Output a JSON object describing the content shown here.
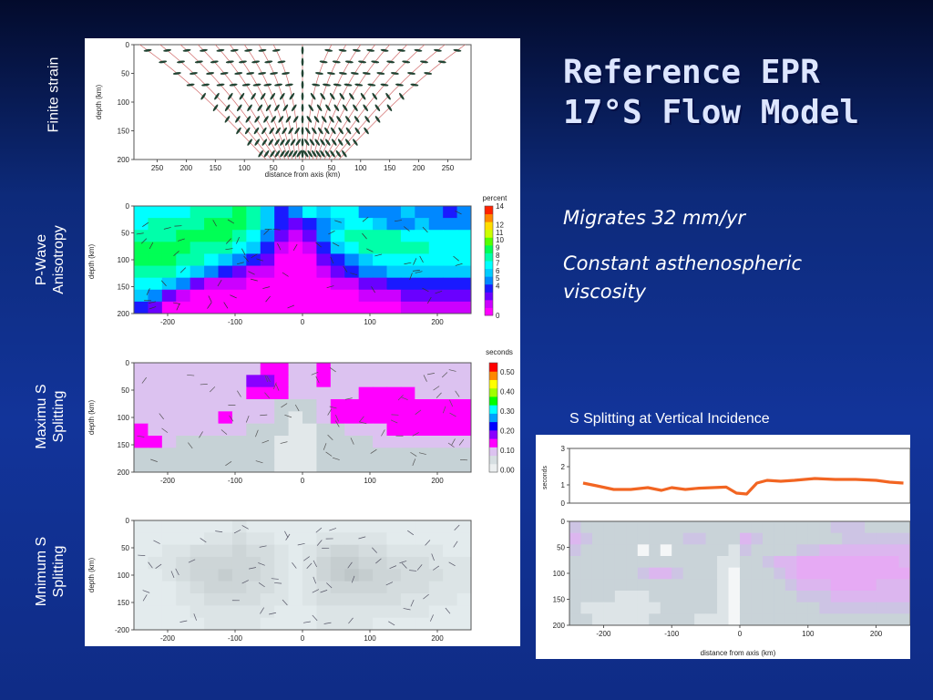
{
  "slide": {
    "title_line1": "Reference EPR",
    "title_line2": "17°S Flow Model",
    "bullet1": "Migrates 32 mm/yr",
    "bullet2_line1": "Constant asthenospheric",
    "bullet2_line2": "viscosity",
    "side_labels": {
      "finite_strain": "Finite strain",
      "pwave_line1": "P-Wave",
      "pwave_line2": "Anisotropy",
      "maxs_line1": "Maximu S",
      "maxs_line2": "Splitting",
      "mins_line1": "Mnimum S",
      "mins_line2": "Splitting"
    },
    "s_split_title": "S Splitting at Vertical Incidence"
  },
  "chart_data": [
    {
      "type": "other",
      "panel": "finite-strain",
      "xlabel": "distance from axis (km)",
      "ylabel": "depth (km)",
      "xticks": [
        "250",
        "200",
        "150",
        "100",
        "50",
        "0",
        "50",
        "100",
        "150",
        "200",
        "250"
      ],
      "yticks": [
        "0",
        "50",
        "100",
        "150",
        "200"
      ],
      "xlim": [
        -290,
        290
      ],
      "ylim": [
        0,
        200
      ]
    },
    {
      "type": "heatmap",
      "panel": "p-wave-anisotropy",
      "ylabel": "depth (km)",
      "xticks": [
        "-200",
        "-100",
        "0",
        "100",
        "200"
      ],
      "yticks": [
        "0",
        "50",
        "100",
        "150",
        "200"
      ],
      "xlim": [
        -250,
        250
      ],
      "ylim": [
        0,
        200
      ],
      "colorbar_label": "percent",
      "colorbar_ticks": [
        "14",
        "12",
        "11",
        "10",
        "9",
        "8",
        "7",
        "6",
        "5",
        "4",
        "0"
      ],
      "grid_rows": [
        [
          7,
          7,
          7,
          7,
          8,
          8,
          8,
          9,
          8,
          6,
          4,
          5,
          7,
          6,
          7,
          7,
          5,
          5,
          5,
          6,
          5,
          5,
          4,
          5
        ],
        [
          7,
          8,
          8,
          8,
          8,
          9,
          9,
          9,
          8,
          6,
          4,
          3,
          4,
          5,
          6,
          7,
          7,
          6,
          5,
          5,
          6,
          5,
          5,
          5
        ],
        [
          8,
          8,
          8,
          9,
          9,
          9,
          9,
          8,
          7,
          5,
          3,
          2,
          3,
          5,
          7,
          8,
          8,
          8,
          8,
          7,
          7,
          7,
          7,
          7
        ],
        [
          9,
          9,
          9,
          9,
          8,
          8,
          8,
          7,
          6,
          4,
          2,
          1,
          2,
          4,
          6,
          7,
          8,
          8,
          8,
          8,
          8,
          7,
          7,
          7
        ],
        [
          9,
          9,
          9,
          8,
          8,
          7,
          6,
          5,
          4,
          3,
          1,
          1,
          1,
          3,
          4,
          5,
          6,
          7,
          7,
          7,
          7,
          7,
          7,
          7
        ],
        [
          8,
          8,
          8,
          7,
          6,
          5,
          4,
          3,
          2,
          2,
          1,
          1,
          1,
          2,
          3,
          4,
          5,
          5,
          6,
          6,
          6,
          6,
          6,
          6
        ],
        [
          7,
          7,
          6,
          5,
          3,
          2,
          2,
          2,
          1,
          1,
          1,
          1,
          1,
          1,
          2,
          2,
          3,
          3,
          4,
          4,
          4,
          4,
          4,
          4
        ],
        [
          6,
          5,
          3,
          2,
          1,
          1,
          1,
          1,
          1,
          1,
          1,
          1,
          1,
          1,
          1,
          1,
          2,
          2,
          2,
          3,
          3,
          3,
          3,
          3
        ],
        [
          4,
          3,
          1,
          1,
          1,
          1,
          1,
          1,
          1,
          1,
          1,
          1,
          1,
          1,
          1,
          1,
          1,
          1,
          1,
          2,
          2,
          2,
          2,
          2
        ]
      ]
    },
    {
      "type": "heatmap",
      "panel": "maximum-s-splitting",
      "ylabel": "depth (km)",
      "xticks": [
        "-200",
        "-100",
        "0",
        "100",
        "200"
      ],
      "yticks": [
        "0",
        "50",
        "100",
        "150",
        "200"
      ],
      "xlim": [
        -250,
        250
      ],
      "ylim": [
        0,
        200
      ],
      "colorbar_label": "seconds",
      "colorbar_ticks": [
        "0.50",
        "0.40",
        "0.30",
        "0.20",
        "0.10",
        "0.00"
      ],
      "grid_rows": [
        [
          0.14,
          0.14,
          0.14,
          0.14,
          0.14,
          0.14,
          0.14,
          0.14,
          0.14,
          0.2,
          0.2,
          0.14,
          0.14,
          0.2,
          0.14,
          0.14,
          0.14,
          0.14,
          0.14,
          0.14,
          0.14,
          0.14,
          0.14,
          0.14
        ],
        [
          0.14,
          0.14,
          0.14,
          0.14,
          0.14,
          0.14,
          0.14,
          0.14,
          0.25,
          0.22,
          0.2,
          0.14,
          0.14,
          0.2,
          0.14,
          0.14,
          0.14,
          0.14,
          0.14,
          0.14,
          0.14,
          0.14,
          0.14,
          0.14
        ],
        [
          0.14,
          0.14,
          0.14,
          0.14,
          0.14,
          0.14,
          0.14,
          0.14,
          0.2,
          0.2,
          0.2,
          0.14,
          0.14,
          0.14,
          0.14,
          0.14,
          0.2,
          0.2,
          0.2,
          0.2,
          0.14,
          0.14,
          0.14,
          0.14
        ],
        [
          0.14,
          0.14,
          0.14,
          0.14,
          0.14,
          0.14,
          0.14,
          0.14,
          0.14,
          0.14,
          0.12,
          0.12,
          0.12,
          0.14,
          0.2,
          0.2,
          0.2,
          0.2,
          0.2,
          0.2,
          0.2,
          0.2,
          0.2,
          0.2
        ],
        [
          0.14,
          0.14,
          0.14,
          0.14,
          0.14,
          0.14,
          0.2,
          0.14,
          0.14,
          0.14,
          0.12,
          0.08,
          0.1,
          0.14,
          0.2,
          0.2,
          0.2,
          0.2,
          0.2,
          0.2,
          0.2,
          0.2,
          0.2,
          0.2
        ],
        [
          0.2,
          0.14,
          0.14,
          0.14,
          0.14,
          0.14,
          0.14,
          0.14,
          0.12,
          0.1,
          0.1,
          0.06,
          0.08,
          0.12,
          0.12,
          0.14,
          0.14,
          0.14,
          0.2,
          0.2,
          0.2,
          0.2,
          0.2,
          0.2
        ],
        [
          0.2,
          0.2,
          0.14,
          0.12,
          0.12,
          0.12,
          0.1,
          0.1,
          0.1,
          0.1,
          0.08,
          0.06,
          0.08,
          0.1,
          0.1,
          0.12,
          0.12,
          0.14,
          0.14,
          0.14,
          0.14,
          0.14,
          0.14,
          0.14
        ],
        [
          0.12,
          0.12,
          0.12,
          0.12,
          0.12,
          0.1,
          0.1,
          0.1,
          0.1,
          0.1,
          0.08,
          0.06,
          0.08,
          0.1,
          0.1,
          0.1,
          0.1,
          0.12,
          0.12,
          0.12,
          0.12,
          0.12,
          0.12,
          0.12
        ],
        [
          0.12,
          0.12,
          0.12,
          0.1,
          0.1,
          0.1,
          0.1,
          0.1,
          0.1,
          0.1,
          0.08,
          0.06,
          0.08,
          0.1,
          0.1,
          0.1,
          0.1,
          0.1,
          0.1,
          0.1,
          0.1,
          0.1,
          0.1,
          0.1
        ]
      ]
    },
    {
      "type": "heatmap",
      "panel": "minimum-s-splitting",
      "ylabel": "depth (km)",
      "xticks": [
        "-200",
        "-100",
        "0",
        "100",
        "200"
      ],
      "yticks": [
        "0",
        "50",
        "100",
        "150",
        "200"
      ],
      "xlim": [
        -250,
        250
      ],
      "ylim": [
        0,
        200
      ],
      "grid_rows": [
        [
          0.02,
          0.02,
          0.02,
          0.02,
          0.02,
          0.02,
          0.02,
          0.03,
          0.02,
          0.02,
          0.02,
          0.02,
          0.02,
          0.02,
          0.02,
          0.02,
          0.02,
          0.02,
          0.02,
          0.02,
          0.02,
          0.02,
          0.02,
          0.02
        ],
        [
          0.02,
          0.02,
          0.02,
          0.02,
          0.02,
          0.03,
          0.03,
          0.04,
          0.03,
          0.03,
          0.02,
          0.02,
          0.02,
          0.03,
          0.03,
          0.03,
          0.03,
          0.03,
          0.02,
          0.02,
          0.02,
          0.02,
          0.02,
          0.02
        ],
        [
          0.02,
          0.02,
          0.03,
          0.03,
          0.04,
          0.04,
          0.04,
          0.05,
          0.04,
          0.04,
          0.03,
          0.02,
          0.03,
          0.04,
          0.05,
          0.05,
          0.04,
          0.04,
          0.03,
          0.03,
          0.03,
          0.03,
          0.02,
          0.02
        ],
        [
          0.02,
          0.03,
          0.03,
          0.04,
          0.05,
          0.05,
          0.05,
          0.05,
          0.05,
          0.04,
          0.03,
          0.02,
          0.03,
          0.05,
          0.06,
          0.06,
          0.05,
          0.05,
          0.04,
          0.04,
          0.04,
          0.03,
          0.03,
          0.03
        ],
        [
          0.02,
          0.02,
          0.03,
          0.04,
          0.05,
          0.05,
          0.06,
          0.05,
          0.05,
          0.04,
          0.03,
          0.02,
          0.03,
          0.05,
          0.06,
          0.07,
          0.06,
          0.05,
          0.05,
          0.04,
          0.04,
          0.04,
          0.03,
          0.03
        ],
        [
          0.02,
          0.02,
          0.02,
          0.03,
          0.04,
          0.05,
          0.05,
          0.05,
          0.04,
          0.04,
          0.03,
          0.02,
          0.03,
          0.04,
          0.05,
          0.05,
          0.05,
          0.05,
          0.04,
          0.04,
          0.04,
          0.03,
          0.03,
          0.03
        ],
        [
          0.02,
          0.02,
          0.02,
          0.03,
          0.03,
          0.04,
          0.04,
          0.04,
          0.04,
          0.03,
          0.03,
          0.02,
          0.03,
          0.04,
          0.04,
          0.04,
          0.04,
          0.04,
          0.04,
          0.03,
          0.03,
          0.03,
          0.03,
          0.02
        ],
        [
          0.02,
          0.02,
          0.02,
          0.02,
          0.03,
          0.03,
          0.03,
          0.03,
          0.03,
          0.03,
          0.02,
          0.02,
          0.02,
          0.03,
          0.03,
          0.03,
          0.03,
          0.03,
          0.03,
          0.03,
          0.03,
          0.02,
          0.02,
          0.02
        ],
        [
          0.02,
          0.02,
          0.02,
          0.02,
          0.02,
          0.03,
          0.03,
          0.03,
          0.03,
          0.02,
          0.02,
          0.02,
          0.02,
          0.03,
          0.03,
          0.03,
          0.03,
          0.02,
          0.02,
          0.02,
          0.02,
          0.02,
          0.02,
          0.02
        ]
      ]
    },
    {
      "type": "line",
      "panel": "s-splitting-vertical-incidence",
      "ylabel": "seconds",
      "xlim": [
        -250,
        250
      ],
      "ylim": [
        0,
        3
      ],
      "yticks": [
        "0",
        "1",
        "2",
        "3"
      ],
      "series": [
        {
          "color": "#f26522",
          "x": [
            -230,
            -210,
            -185,
            -160,
            -135,
            -115,
            -100,
            -80,
            -60,
            -40,
            -20,
            -5,
            10,
            25,
            40,
            60,
            80,
            110,
            140,
            170,
            200,
            220,
            240
          ],
          "values": [
            1.1,
            0.95,
            0.75,
            0.75,
            0.85,
            0.7,
            0.85,
            0.75,
            0.82,
            0.85,
            0.88,
            0.55,
            0.5,
            1.1,
            1.25,
            1.2,
            1.25,
            1.35,
            1.3,
            1.3,
            1.25,
            1.15,
            1.1
          ]
        }
      ]
    },
    {
      "type": "heatmap",
      "panel": "s-splitting-depth-section",
      "xlabel": "distance from axis (km)",
      "xticks": [
        "-200",
        "-100",
        "0",
        "100",
        "200"
      ],
      "yticks": [
        "0",
        "50",
        "100",
        "150",
        "200"
      ],
      "xlim": [
        -250,
        250
      ],
      "ylim": [
        0,
        200
      ],
      "grid_rows": [
        [
          0.14,
          0.12,
          0.12,
          0.12,
          0.12,
          0.12,
          0.12,
          0.12,
          0.12,
          0.12,
          0.12,
          0.12,
          0.1,
          0.12,
          0.12,
          0.12,
          0.12,
          0.1,
          0.1,
          0.12,
          0.12,
          0.12,
          0.12,
          0.14,
          0.14,
          0.14,
          0.12,
          0.12,
          0.12,
          0.12
        ],
        [
          0.16,
          0.14,
          0.12,
          0.12,
          0.12,
          0.12,
          0.12,
          0.1,
          0.12,
          0.12,
          0.14,
          0.14,
          0.12,
          0.12,
          0.12,
          0.16,
          0.14,
          0.12,
          0.12,
          0.12,
          0.12,
          0.12,
          0.12,
          0.12,
          0.14,
          0.14,
          0.14,
          0.14,
          0.14,
          0.14
        ],
        [
          0.14,
          0.12,
          0.12,
          0.12,
          0.12,
          0.12,
          0.04,
          0.12,
          0.04,
          0.12,
          0.12,
          0.12,
          0.12,
          0.12,
          0.06,
          0.14,
          0.12,
          0.12,
          0.12,
          0.12,
          0.14,
          0.14,
          0.16,
          0.16,
          0.16,
          0.16,
          0.16,
          0.16,
          0.16,
          0.16
        ],
        [
          0.12,
          0.12,
          0.12,
          0.12,
          0.12,
          0.12,
          0.12,
          0.12,
          0.12,
          0.12,
          0.12,
          0.12,
          0.12,
          0.06,
          0.06,
          0.12,
          0.12,
          0.14,
          0.16,
          0.16,
          0.18,
          0.18,
          0.18,
          0.18,
          0.18,
          0.18,
          0.18,
          0.18,
          0.18,
          0.16
        ],
        [
          0.12,
          0.12,
          0.12,
          0.12,
          0.12,
          0.12,
          0.14,
          0.16,
          0.16,
          0.14,
          0.12,
          0.12,
          0.12,
          0.06,
          0.04,
          0.12,
          0.12,
          0.12,
          0.14,
          0.16,
          0.18,
          0.18,
          0.18,
          0.18,
          0.18,
          0.18,
          0.18,
          0.18,
          0.18,
          0.18
        ],
        [
          0.12,
          0.12,
          0.12,
          0.12,
          0.12,
          0.12,
          0.12,
          0.12,
          0.12,
          0.12,
          0.12,
          0.12,
          0.12,
          0.06,
          0.04,
          0.1,
          0.12,
          0.12,
          0.12,
          0.14,
          0.16,
          0.16,
          0.16,
          0.18,
          0.18,
          0.18,
          0.18,
          0.16,
          0.16,
          0.16
        ],
        [
          0.1,
          0.1,
          0.1,
          0.1,
          0.08,
          0.08,
          0.08,
          0.1,
          0.1,
          0.1,
          0.1,
          0.1,
          0.1,
          0.06,
          0.04,
          0.1,
          0.12,
          0.12,
          0.12,
          0.12,
          0.14,
          0.14,
          0.14,
          0.16,
          0.16,
          0.16,
          0.16,
          0.16,
          0.16,
          0.16
        ],
        [
          0.1,
          0.08,
          0.06,
          0.06,
          0.08,
          0.08,
          0.08,
          0.08,
          0.1,
          0.1,
          0.1,
          0.1,
          0.1,
          0.06,
          0.04,
          0.1,
          0.1,
          0.12,
          0.12,
          0.12,
          0.12,
          0.12,
          0.14,
          0.14,
          0.14,
          0.14,
          0.14,
          0.14,
          0.14,
          0.14
        ],
        [
          0.1,
          0.1,
          0.08,
          0.08,
          0.06,
          0.06,
          0.08,
          0.1,
          0.1,
          0.1,
          0.1,
          0.08,
          0.08,
          0.06,
          0.04,
          0.1,
          0.1,
          0.1,
          0.12,
          0.12,
          0.12,
          0.12,
          0.12,
          0.12,
          0.12,
          0.12,
          0.12,
          0.12,
          0.12,
          0.12
        ]
      ]
    }
  ],
  "colors": {
    "anisotropy_scale": [
      "#ff00ff",
      "#cc00ff",
      "#6a00ff",
      "#1a1aff",
      "#0088ff",
      "#00ccff",
      "#00ffff",
      "#00ffaa",
      "#00ff55",
      "#55ff00",
      "#ccff00",
      "#ffdd00",
      "#ff8800",
      "#ff2200"
    ],
    "splitting_scale": [
      "#e2e8ea",
      "#c6d2d6",
      "#dcc2f0",
      "#ff00ff",
      "#8a00ff",
      "#0000ff",
      "#00a0ff",
      "#00ffff",
      "#00ff00",
      "#a0ff00",
      "#ffff00",
      "#ff8800",
      "#ff0000"
    ],
    "strain_line": "#d06a6a",
    "strain_ellipse": "#224433",
    "orange_curve": "#f26522"
  }
}
